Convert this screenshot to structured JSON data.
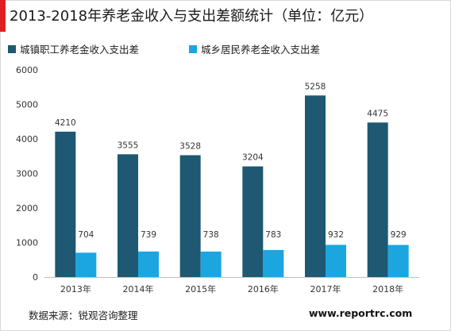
{
  "title": "2013-2018年养老金收入与支出差额统计（单位：亿元）",
  "colors": {
    "series1": "#1e5872",
    "series2": "#1ba6e0",
    "accent": "#e02020"
  },
  "chart_data": {
    "type": "bar",
    "categories": [
      "2013年",
      "2014年",
      "2015年",
      "2016年",
      "2017年",
      "2018年"
    ],
    "series": [
      {
        "name": "城镇职工养老金收入支出差",
        "values": [
          4210,
          3555,
          3528,
          3204,
          5258,
          4475
        ],
        "color": "#1e5872"
      },
      {
        "name": "城乡居民养老金收入支出差",
        "values": [
          704,
          739,
          738,
          783,
          932,
          929
        ],
        "color": "#1ba6e0"
      }
    ],
    "ylim": [
      0,
      6000
    ],
    "yticks": [
      "0",
      "1000",
      "2000",
      "3000",
      "4000",
      "5000",
      "6000"
    ],
    "grid": false,
    "legend_position": "top-left",
    "data_labels": true
  },
  "footer": {
    "source": "数据来源：锐观咨询整理",
    "website": "www.reportrc.com"
  }
}
